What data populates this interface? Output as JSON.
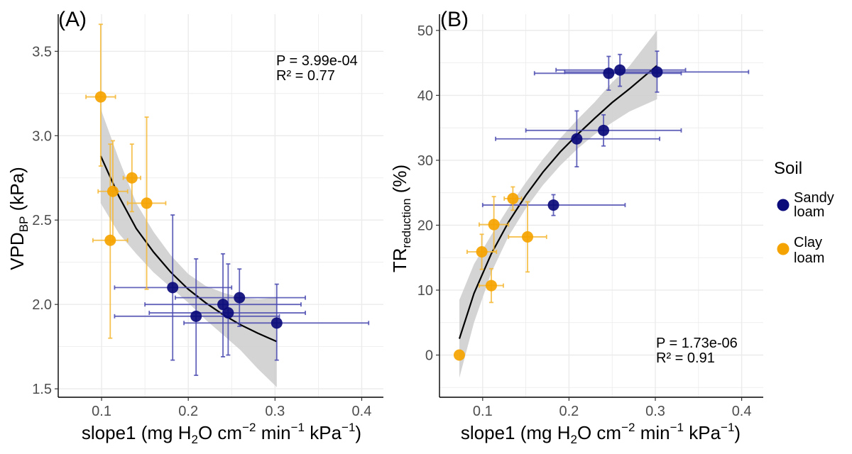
{
  "colors": {
    "sandy": "#0a0a7a",
    "clay": "#f5a300",
    "sandy_err": "#4a4ab0",
    "clay_err": "#f5b733",
    "ribbon": "#cccccc",
    "grid": "#ebebeb",
    "fit": "#000000"
  },
  "legend": {
    "title": "Soil",
    "items": [
      {
        "label_line1": "Sandy",
        "label_line2": "loam",
        "color": "#0a0a7a"
      },
      {
        "label_line1": "Clay",
        "label_line2": "loam",
        "color": "#f5a300"
      }
    ]
  },
  "chart_data": [
    {
      "type": "scatter",
      "panel_label": "(A)",
      "xlabel": "slope1 (mg H₂O cm⁻² min⁻¹ kPa⁻¹)",
      "ylabel": "VPD_BP (kPa)",
      "xlim": [
        0.05,
        0.425
      ],
      "ylim": [
        1.45,
        3.72
      ],
      "xticks": [
        0.1,
        0.2,
        0.3,
        0.4
      ],
      "xtick_labels": [
        "0.1",
        "0.2",
        "0.3",
        "0.4"
      ],
      "yticks": [
        1.5,
        2.0,
        2.5,
        3.0,
        3.5
      ],
      "ytick_labels": [
        "1.5",
        "2.0",
        "2.5",
        "3.0",
        "3.5"
      ],
      "stats": {
        "p": "P = 3.99e-04",
        "r2": "R² = 0.77"
      },
      "grid": true,
      "series": [
        {
          "name": "Sandy loam",
          "points": [
            {
              "x": 0.182,
              "y": 2.1,
              "xlo": 0.115,
              "xhi": 0.25,
              "ylo": 1.67,
              "yhi": 2.53
            },
            {
              "x": 0.209,
              "y": 1.93,
              "xlo": 0.115,
              "xhi": 0.305,
              "ylo": 1.58,
              "yhi": 2.27
            },
            {
              "x": 0.24,
              "y": 2.0,
              "xlo": 0.15,
              "xhi": 0.33,
              "ylo": 1.69,
              "yhi": 2.3
            },
            {
              "x": 0.246,
              "y": 1.95,
              "xlo": 0.155,
              "xhi": 0.335,
              "ylo": 1.7,
              "yhi": 2.24
            },
            {
              "x": 0.259,
              "y": 2.04,
              "xlo": 0.185,
              "xhi": 0.335,
              "ylo": 1.87,
              "yhi": 2.21
            },
            {
              "x": 0.302,
              "y": 1.89,
              "xlo": 0.195,
              "xhi": 0.408,
              "ylo": 1.67,
              "yhi": 2.12
            }
          ]
        },
        {
          "name": "Clay loam",
          "points": [
            {
              "x": 0.099,
              "y": 3.23,
              "xlo": 0.082,
              "xhi": 0.116,
              "ylo": 2.82,
              "yhi": 3.66
            },
            {
              "x": 0.113,
              "y": 2.67,
              "xlo": 0.096,
              "xhi": 0.13,
              "ylo": 2.37,
              "yhi": 2.97
            },
            {
              "x": 0.11,
              "y": 2.38,
              "xlo": 0.09,
              "xhi": 0.13,
              "ylo": 1.8,
              "yhi": 2.95
            },
            {
              "x": 0.135,
              "y": 2.75,
              "xlo": 0.125,
              "xhi": 0.145,
              "ylo": 2.55,
              "yhi": 2.95
            },
            {
              "x": 0.152,
              "y": 2.6,
              "xlo": 0.13,
              "xhi": 0.174,
              "ylo": 2.09,
              "yhi": 3.11
            }
          ]
        }
      ],
      "fit": {
        "x": [
          0.099,
          0.12,
          0.14,
          0.16,
          0.18,
          0.2,
          0.22,
          0.24,
          0.26,
          0.28,
          0.302
        ],
        "y": [
          2.88,
          2.64,
          2.45,
          2.31,
          2.19,
          2.09,
          2.01,
          1.94,
          1.88,
          1.83,
          1.78
        ],
        "ylo": [
          2.6,
          2.42,
          2.3,
          2.19,
          2.1,
          2.01,
          1.91,
          1.82,
          1.73,
          1.62,
          1.51
        ],
        "yhi": [
          3.16,
          2.86,
          2.6,
          2.43,
          2.29,
          2.18,
          2.11,
          2.07,
          2.04,
          2.03,
          2.04
        ]
      }
    },
    {
      "type": "scatter",
      "panel_label": "(B)",
      "xlabel": "slope1 (mg H₂O cm⁻² min⁻¹ kPa⁻¹)",
      "ylabel": "TR_reduction (%)",
      "xlim": [
        0.05,
        0.425
      ],
      "ylim": [
        -6.5,
        52.5
      ],
      "xticks": [
        0.1,
        0.2,
        0.3,
        0.4
      ],
      "xtick_labels": [
        "0.1",
        "0.2",
        "0.3",
        "0.4"
      ],
      "yticks": [
        0,
        10,
        20,
        30,
        40,
        50
      ],
      "ytick_labels": [
        "0",
        "10",
        "20",
        "30",
        "40",
        "50"
      ],
      "stats": {
        "p": "P = 1.73e-06",
        "r2": "R² = 0.91"
      },
      "grid": true,
      "series": [
        {
          "name": "Sandy loam",
          "points": [
            {
              "x": 0.182,
              "y": 23.1,
              "xlo": 0.1,
              "xhi": 0.265,
              "ylo": 21.5,
              "yhi": 24.7
            },
            {
              "x": 0.209,
              "y": 33.3,
              "xlo": 0.115,
              "xhi": 0.305,
              "ylo": 29.0,
              "yhi": 37.6
            },
            {
              "x": 0.24,
              "y": 34.6,
              "xlo": 0.15,
              "xhi": 0.33,
              "ylo": 32.2,
              "yhi": 37.0
            },
            {
              "x": 0.246,
              "y": 43.4,
              "xlo": 0.16,
              "xhi": 0.33,
              "ylo": 40.8,
              "yhi": 46.0
            },
            {
              "x": 0.259,
              "y": 43.9,
              "xlo": 0.185,
              "xhi": 0.335,
              "ylo": 41.4,
              "yhi": 46.3
            },
            {
              "x": 0.302,
              "y": 43.6,
              "xlo": 0.195,
              "xhi": 0.408,
              "ylo": 40.5,
              "yhi": 46.8
            }
          ]
        },
        {
          "name": "Clay loam",
          "points": [
            {
              "x": 0.073,
              "y": 0.0,
              "xlo": 0.073,
              "xhi": 0.073,
              "ylo": 0.0,
              "yhi": 0.0
            },
            {
              "x": 0.099,
              "y": 15.9,
              "xlo": 0.082,
              "xhi": 0.116,
              "ylo": 13.2,
              "yhi": 18.6
            },
            {
              "x": 0.113,
              "y": 20.1,
              "xlo": 0.096,
              "xhi": 0.13,
              "ylo": 15.9,
              "yhi": 24.4
            },
            {
              "x": 0.11,
              "y": 10.7,
              "xlo": 0.096,
              "xhi": 0.124,
              "ylo": 8.1,
              "yhi": 13.3
            },
            {
              "x": 0.135,
              "y": 24.1,
              "xlo": 0.125,
              "xhi": 0.145,
              "ylo": 22.3,
              "yhi": 25.9
            },
            {
              "x": 0.152,
              "y": 18.2,
              "xlo": 0.13,
              "xhi": 0.174,
              "ylo": 12.8,
              "yhi": 23.6
            }
          ]
        }
      ],
      "fit": {
        "x": [
          0.073,
          0.09,
          0.11,
          0.13,
          0.15,
          0.17,
          0.19,
          0.21,
          0.23,
          0.25,
          0.27,
          0.302
        ],
        "y": [
          2.5,
          9.5,
          15.6,
          20.5,
          24.6,
          28.2,
          31.3,
          34.0,
          36.5,
          38.9,
          41.0,
          44.6
        ],
        "ylo": [
          -3.5,
          5.0,
          12.7,
          18.3,
          22.6,
          26.2,
          29.2,
          31.8,
          34.0,
          35.8,
          37.5,
          39.4
        ],
        "yhi": [
          8.5,
          14.0,
          18.5,
          22.7,
          26.6,
          30.2,
          33.4,
          36.3,
          39.0,
          42.0,
          44.5,
          50.0
        ]
      }
    }
  ]
}
